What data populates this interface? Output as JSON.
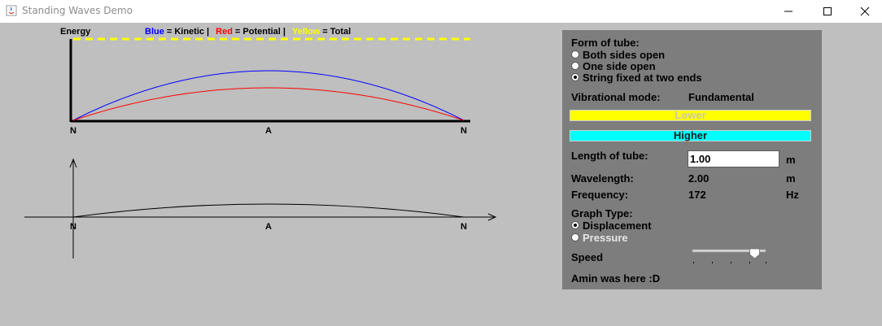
{
  "window": {
    "title": "Standing Waves Demo"
  },
  "graph": {
    "energy_label": "Energy",
    "legend": {
      "blue_word": "Blue",
      "blue_text": "= Kinetic  |",
      "red_word": "Red",
      "red_text": "= Potential  |",
      "yellow_word": "Yellow",
      "yellow_text": "= Total"
    },
    "node_label": "N",
    "antinode_label": "A"
  },
  "panel": {
    "form_title": "Form of tube:",
    "forms": [
      {
        "label": "Both sides open",
        "selected": false
      },
      {
        "label": "One side open",
        "selected": false
      },
      {
        "label": "String fixed at two ends",
        "selected": true
      }
    ],
    "mode_label": "Vibrational mode:",
    "mode_value": "Fundamental",
    "lower_button": "Lower",
    "higher_button": "Higher",
    "length_label": "Length of tube:",
    "length_value": "1.00",
    "length_unit": "m",
    "wavelength_label": "Wavelength:",
    "wavelength_value": "2.00",
    "wavelength_unit": "m",
    "frequency_label": "Frequency:",
    "frequency_value": "172",
    "frequency_unit": "Hz",
    "graph_type_title": "Graph Type:",
    "graph_types": [
      {
        "label": "Displacement",
        "selected": true
      },
      {
        "label": "Pressure",
        "selected": false
      }
    ],
    "speed_label": "Speed",
    "speed_fraction": 0.85,
    "footer_text": "Amin was here :D"
  },
  "colors": {
    "kinetic": "#0000ff",
    "potential": "#ff0000",
    "total": "#ffff00"
  }
}
